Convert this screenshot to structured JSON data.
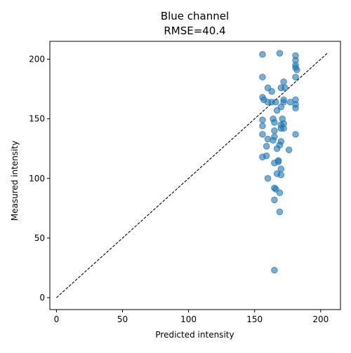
{
  "chart_data": {
    "type": "scatter",
    "title": "Blue channel",
    "subtitle": "RMSE=40.4",
    "xlabel": "Predicted intensity",
    "ylabel": "Measured intensity",
    "xlim": [
      -5,
      215
    ],
    "ylim": [
      -10,
      215
    ],
    "xticks": [
      0,
      50,
      100,
      150,
      200
    ],
    "yticks": [
      0,
      50,
      100,
      150,
      200
    ],
    "grid": false,
    "reference_line": {
      "x": [
        0,
        205
      ],
      "y": [
        0,
        205
      ],
      "style": "dashed",
      "color": "#000000"
    },
    "marker_color": "#1f77b4",
    "marker_alpha": 0.6,
    "points": [
      {
        "x": 156,
        "y": 204
      },
      {
        "x": 169,
        "y": 205
      },
      {
        "x": 181,
        "y": 203
      },
      {
        "x": 181,
        "y": 199
      },
      {
        "x": 181,
        "y": 195
      },
      {
        "x": 181,
        "y": 193
      },
      {
        "x": 182,
        "y": 191
      },
      {
        "x": 156,
        "y": 185
      },
      {
        "x": 181,
        "y": 185
      },
      {
        "x": 172,
        "y": 181
      },
      {
        "x": 160,
        "y": 176
      },
      {
        "x": 170,
        "y": 176
      },
      {
        "x": 173,
        "y": 176
      },
      {
        "x": 163,
        "y": 173
      },
      {
        "x": 156,
        "y": 168
      },
      {
        "x": 157,
        "y": 166
      },
      {
        "x": 172,
        "y": 166
      },
      {
        "x": 181,
        "y": 166
      },
      {
        "x": 160,
        "y": 164
      },
      {
        "x": 163,
        "y": 164
      },
      {
        "x": 166,
        "y": 164
      },
      {
        "x": 172,
        "y": 164
      },
      {
        "x": 177,
        "y": 164
      },
      {
        "x": 181,
        "y": 162
      },
      {
        "x": 170,
        "y": 160
      },
      {
        "x": 181,
        "y": 159
      },
      {
        "x": 167,
        "y": 157
      },
      {
        "x": 171,
        "y": 150
      },
      {
        "x": 164,
        "y": 150
      },
      {
        "x": 156,
        "y": 149
      },
      {
        "x": 165,
        "y": 147
      },
      {
        "x": 172,
        "y": 146
      },
      {
        "x": 170,
        "y": 145
      },
      {
        "x": 156,
        "y": 144
      },
      {
        "x": 170,
        "y": 142
      },
      {
        "x": 172,
        "y": 142
      },
      {
        "x": 165,
        "y": 140
      },
      {
        "x": 156,
        "y": 137
      },
      {
        "x": 181,
        "y": 137
      },
      {
        "x": 165,
        "y": 135
      },
      {
        "x": 160,
        "y": 133
      },
      {
        "x": 164,
        "y": 132
      },
      {
        "x": 170,
        "y": 131
      },
      {
        "x": 169,
        "y": 128
      },
      {
        "x": 159,
        "y": 127
      },
      {
        "x": 167,
        "y": 125
      },
      {
        "x": 176,
        "y": 124
      },
      {
        "x": 159,
        "y": 119
      },
      {
        "x": 156,
        "y": 118
      },
      {
        "x": 168,
        "y": 115
      },
      {
        "x": 168,
        "y": 114
      },
      {
        "x": 165,
        "y": 113
      },
      {
        "x": 170,
        "y": 108
      },
      {
        "x": 167,
        "y": 104
      },
      {
        "x": 170,
        "y": 103
      },
      {
        "x": 160,
        "y": 100
      },
      {
        "x": 165,
        "y": 92
      },
      {
        "x": 166,
        "y": 91
      },
      {
        "x": 169,
        "y": 88
      },
      {
        "x": 165,
        "y": 82
      },
      {
        "x": 169,
        "y": 72
      },
      {
        "x": 165,
        "y": 23
      }
    ]
  }
}
